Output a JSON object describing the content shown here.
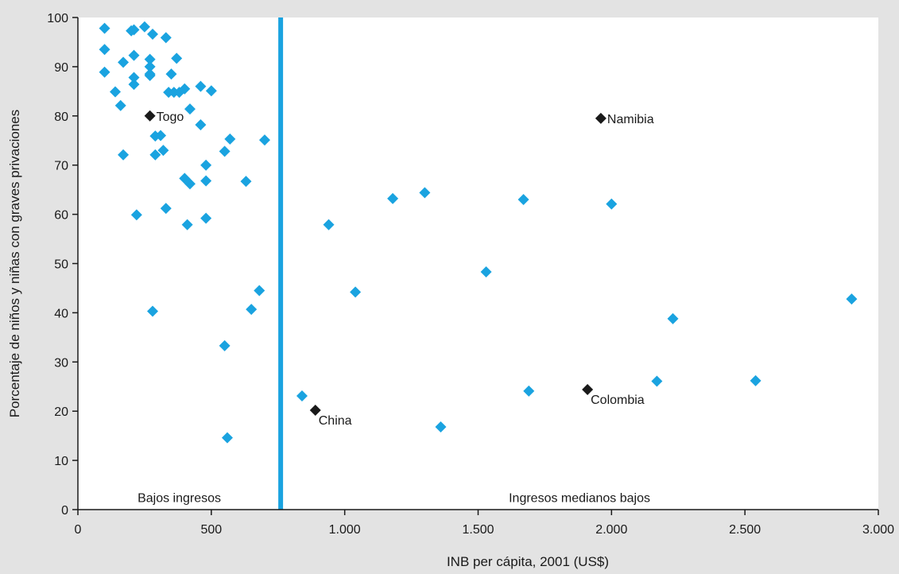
{
  "chart_data": {
    "type": "scatter",
    "title": "",
    "xlabel": "INB per cápita, 2001 (US$)",
    "ylabel": "Porcentaje de niños y niñas con graves privaciones",
    "xlim": [
      0,
      3000
    ],
    "ylim": [
      0,
      100
    ],
    "x_ticks": [
      0,
      500,
      1000,
      1500,
      2000,
      2500,
      3000
    ],
    "x_tick_labels": [
      "0",
      "500",
      "1.000",
      "1.500",
      "2.000",
      "2.500",
      "3.000"
    ],
    "y_ticks": [
      0,
      10,
      20,
      30,
      40,
      50,
      60,
      70,
      80,
      90,
      100
    ],
    "y_tick_labels": [
      "0",
      "10",
      "20",
      "30",
      "40",
      "50",
      "60",
      "70",
      "80",
      "90",
      "100"
    ],
    "grid": false,
    "marker": "diamond",
    "threshold_line": {
      "x": 760,
      "color": "#1aa3e0"
    },
    "regions": [
      {
        "label": "Bajos ingresos",
        "x": 380,
        "y": 2.5
      },
      {
        "label": "Ingresos medianos bajos",
        "x": 1880,
        "y": 2.5
      }
    ],
    "colors": {
      "point": "#1aa3e0",
      "highlight": "#1a1a1a"
    },
    "points": [
      [
        100,
        97.8
      ],
      [
        100,
        93.5
      ],
      [
        100,
        88.9
      ],
      [
        140,
        84.9
      ],
      [
        160,
        82.1
      ],
      [
        170,
        90.9
      ],
      [
        170,
        72.1
      ],
      [
        200,
        97.3
      ],
      [
        210,
        97.5
      ],
      [
        210,
        92.3
      ],
      [
        210,
        87.8
      ],
      [
        210,
        86.4
      ],
      [
        220,
        59.9
      ],
      [
        250,
        98.1
      ],
      [
        270,
        91.5
      ],
      [
        270,
        90.0
      ],
      [
        270,
        88.5
      ],
      [
        270,
        88.2
      ],
      [
        280,
        96.6
      ],
      [
        280,
        40.3
      ],
      [
        290,
        75.9
      ],
      [
        290,
        72.1
      ],
      [
        310,
        76.0
      ],
      [
        320,
        73.0
      ],
      [
        330,
        95.9
      ],
      [
        330,
        61.2
      ],
      [
        340,
        84.8
      ],
      [
        350,
        88.5
      ],
      [
        360,
        84.8
      ],
      [
        370,
        91.7
      ],
      [
        380,
        84.8
      ],
      [
        400,
        85.5
      ],
      [
        400,
        67.3
      ],
      [
        410,
        57.9
      ],
      [
        420,
        66.2
      ],
      [
        420,
        81.4
      ],
      [
        460,
        86.0
      ],
      [
        460,
        78.2
      ],
      [
        480,
        70.0
      ],
      [
        480,
        66.8
      ],
      [
        480,
        59.2
      ],
      [
        500,
        85.1
      ],
      [
        550,
        72.8
      ],
      [
        550,
        33.3
      ],
      [
        560,
        14.6
      ],
      [
        570,
        75.3
      ],
      [
        630,
        66.7
      ],
      [
        650,
        40.7
      ],
      [
        680,
        44.5
      ],
      [
        700,
        75.1
      ],
      [
        840,
        23.1
      ],
      [
        940,
        57.9
      ],
      [
        1040,
        44.2
      ],
      [
        1180,
        63.2
      ],
      [
        1300,
        64.4
      ],
      [
        1360,
        16.8
      ],
      [
        1530,
        48.3
      ],
      [
        1670,
        63.0
      ],
      [
        1690,
        24.1
      ],
      [
        2000,
        62.1
      ],
      [
        2170,
        26.1
      ],
      [
        2230,
        38.8
      ],
      [
        2540,
        26.2
      ],
      [
        2900,
        42.8
      ]
    ],
    "labeled_points": [
      {
        "name": "Togo",
        "x": 270,
        "y": 80.0,
        "label_pos": "right"
      },
      {
        "name": "Namibia",
        "x": 1960,
        "y": 79.5,
        "label_pos": "right"
      },
      {
        "name": "China",
        "x": 890,
        "y": 20.2,
        "label_pos": "below-right"
      },
      {
        "name": "Colombia",
        "x": 1910,
        "y": 24.4,
        "label_pos": "below-right"
      }
    ]
  }
}
